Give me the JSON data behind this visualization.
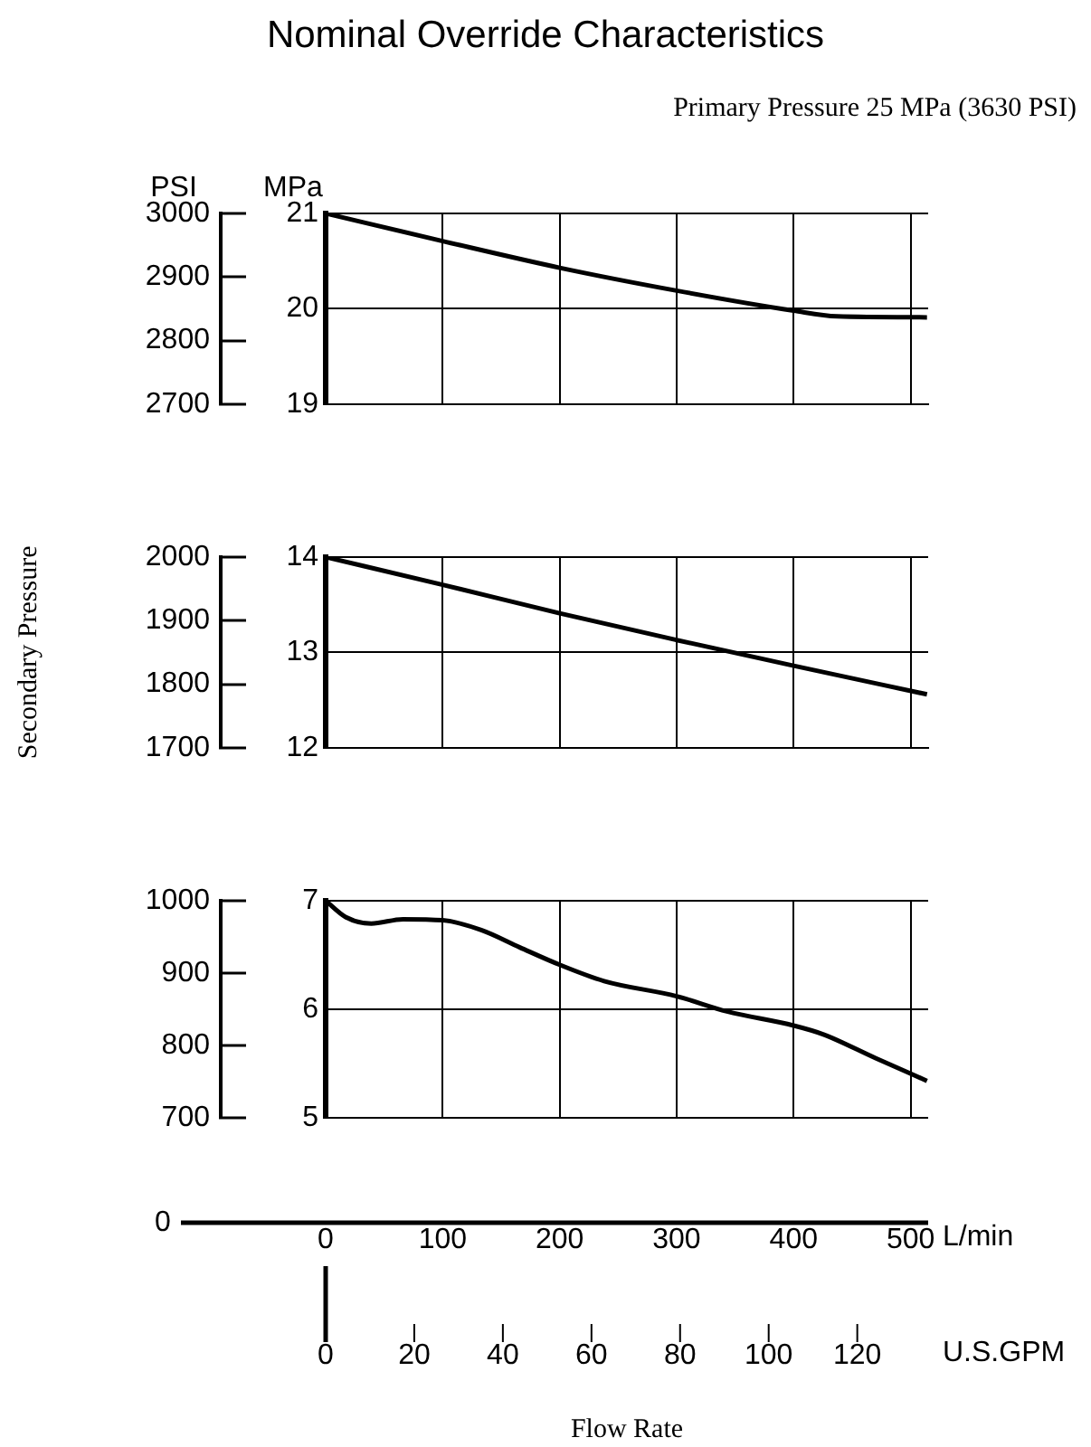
{
  "chart_data": [
    {
      "type": "line",
      "title": "Nominal Override Characteristics",
      "subtitle": "Primary Pressure 25 MPa (3630 PSI)",
      "ylabel": "MPa",
      "y2label": "PSI",
      "x": [
        0,
        100,
        200,
        300,
        400,
        437,
        514
      ],
      "series": [
        {
          "color": "#000000",
          "values": [
            21.0,
            20.71,
            20.43,
            20.19,
            19.98,
            19.92,
            19.91
          ]
        }
      ],
      "xlim": [
        0,
        515
      ],
      "xticks": [
        0,
        100,
        200,
        300,
        400,
        500
      ],
      "ylim": [
        19,
        21
      ],
      "yticks": [
        19,
        20,
        21
      ],
      "y2lim": [
        2700,
        3000
      ],
      "y2ticks": [
        2700,
        2800,
        2900,
        3000
      ],
      "grid": true,
      "legend": false,
      "marker": "none",
      "tick_labels": "y"
    },
    {
      "type": "line",
      "y2label": "Secondary Pressure",
      "x": [
        0,
        100,
        200,
        300,
        400,
        514
      ],
      "series": [
        {
          "color": "#000000",
          "values": [
            14.0,
            13.71,
            13.41,
            13.13,
            12.86,
            12.56
          ]
        }
      ],
      "xlim": [
        0,
        515
      ],
      "xticks": [
        0,
        100,
        200,
        300,
        400,
        500
      ],
      "ylim": [
        12,
        14
      ],
      "yticks": [
        12,
        13,
        14
      ],
      "y2lim": [
        1700,
        2000
      ],
      "y2ticks": [
        1700,
        1800,
        1900,
        2000
      ],
      "grid": true,
      "legend": false,
      "marker": "none",
      "tick_labels": "y"
    },
    {
      "type": "line",
      "xlabel": "Flow Rate",
      "x2label": "U.S.GPM",
      "annotations": [
        "L/min",
        "0"
      ],
      "x": [
        0,
        17,
        39,
        66,
        100,
        133,
        166,
        200,
        238,
        300,
        343,
        400,
        425,
        470,
        514
      ],
      "series": [
        {
          "color": "#000000",
          "values": [
            7.0,
            6.85,
            6.79,
            6.83,
            6.82,
            6.73,
            6.57,
            6.41,
            6.26,
            6.12,
            5.98,
            5.85,
            5.77,
            5.55,
            5.34
          ]
        }
      ],
      "xlim": [
        0,
        515
      ],
      "xticks": [
        0,
        100,
        200,
        300,
        400,
        500
      ],
      "x2lim": [
        0,
        136
      ],
      "x2ticks": [
        0,
        20,
        40,
        60,
        80,
        100,
        120
      ],
      "ylim": [
        5,
        7
      ],
      "yticks": [
        5,
        6,
        7
      ],
      "y2lim": [
        700,
        1000
      ],
      "y2ticks": [
        700,
        800,
        900,
        1000
      ],
      "grid": true,
      "legend": false,
      "marker": "none"
    }
  ]
}
